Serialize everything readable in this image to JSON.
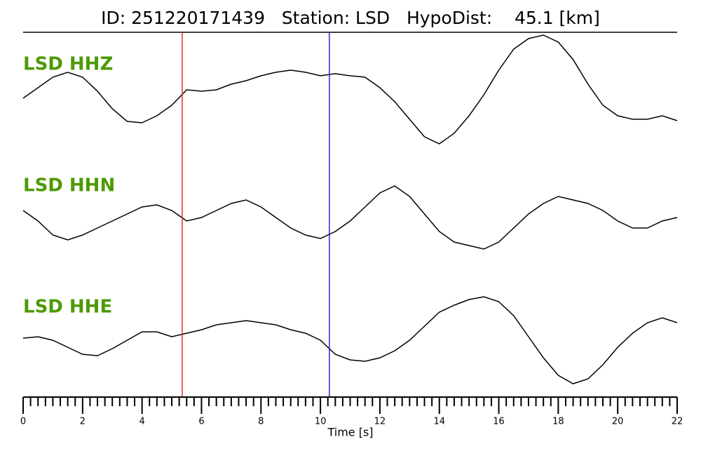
{
  "chart_data": {
    "type": "seismogram",
    "title": "ID: 251220171439   Station: LSD   HypoDist:    45.1 [km]",
    "x_label": "Time [s]",
    "x": [
      0,
      0.5,
      1,
      1.5,
      2,
      2.5,
      3,
      3.5,
      4,
      4.5,
      5,
      5.5,
      6,
      6.5,
      7,
      7.5,
      8,
      8.5,
      9,
      9.5,
      10,
      10.5,
      11,
      11.5,
      12,
      12.5,
      13,
      13.5,
      14,
      14.5,
      15,
      15.5,
      16,
      16.5,
      17,
      17.5,
      18,
      18.5,
      19,
      19.5,
      20,
      20.5,
      21,
      21.5,
      22
    ],
    "series": [
      {
        "name": "LSD HHZ",
        "color": "#000000",
        "values": [
          0,
          15,
          30,
          37,
          30,
          10,
          -15,
          -33,
          -35,
          -25,
          -10,
          12,
          10,
          12,
          20,
          25,
          32,
          37,
          40,
          37,
          32,
          35,
          32,
          30,
          15,
          -5,
          -30,
          -55,
          -65,
          -50,
          -25,
          5,
          40,
          70,
          85,
          90,
          80,
          55,
          20,
          -10,
          -25,
          -30,
          -30,
          -25,
          -32
        ]
      },
      {
        "name": "LSD HHN",
        "color": "#000000",
        "values": [
          0,
          -15,
          -35,
          -42,
          -35,
          -25,
          -15,
          -5,
          5,
          8,
          0,
          -15,
          -10,
          0,
          10,
          15,
          5,
          -10,
          -25,
          -35,
          -40,
          -30,
          -15,
          5,
          25,
          35,
          20,
          -5,
          -30,
          -45,
          -50,
          -55,
          -45,
          -25,
          -5,
          10,
          20,
          15,
          10,
          0,
          -15,
          -25,
          -25,
          -15,
          -10
        ]
      },
      {
        "name": "LSD HHE",
        "color": "#000000",
        "values": [
          3,
          5,
          0,
          -10,
          -20,
          -22,
          -12,
          0,
          12,
          12,
          5,
          10,
          15,
          22,
          25,
          28,
          25,
          22,
          15,
          10,
          0,
          -20,
          -28,
          -30,
          -25,
          -15,
          0,
          20,
          40,
          50,
          58,
          62,
          55,
          35,
          5,
          -25,
          -50,
          -62,
          -55,
          -35,
          -10,
          10,
          25,
          32,
          25
        ]
      }
    ],
    "label_color": "#4e9a06",
    "picks": [
      {
        "x": 5.35,
        "color": "#e0302a"
      },
      {
        "x": 10.3,
        "color": "#2a2ad0"
      }
    ],
    "xlim": [
      0,
      22
    ],
    "ylim": [
      -100,
      100
    ],
    "xticks": [
      0,
      2,
      4,
      6,
      8,
      10,
      12,
      14,
      16,
      18,
      20,
      22
    ],
    "xminorticks": [
      0.25,
      0.5,
      0.75,
      1,
      1.25,
      1.5,
      1.75,
      2.25,
      2.5,
      2.75,
      3,
      3.25,
      3.5,
      3.75,
      4.25,
      4.5,
      4.75,
      5,
      5.25,
      5.5,
      5.75,
      6.25,
      6.5,
      6.75,
      7,
      7.25,
      7.5,
      7.75,
      8.25,
      8.5,
      8.75,
      9,
      9.25,
      9.5,
      9.75,
      10.25,
      10.5,
      10.75,
      11,
      11.25,
      11.5,
      11.75,
      12.25,
      12.5,
      12.75,
      13,
      13.25,
      13.5,
      13.75,
      14.25,
      14.5,
      14.75,
      15,
      15.25,
      15.5,
      15.75,
      16.25,
      16.5,
      16.75,
      17,
      17.25,
      17.5,
      17.75,
      18.25,
      18.5,
      18.75,
      19,
      19.25,
      19.5,
      19.75,
      20.25,
      20.5,
      20.75,
      21,
      21.25,
      21.5,
      21.75
    ]
  }
}
